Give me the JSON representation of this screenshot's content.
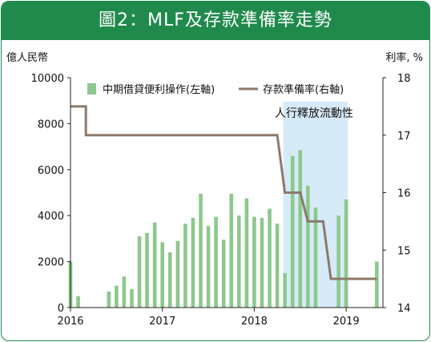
{
  "header": {
    "title": "圖2：MLF及存款準備率走勢"
  },
  "chart_data": {
    "type": "bar+line",
    "title": "圖2：MLF及存款準備率走勢",
    "left_axis": {
      "unit": "億人民幣",
      "ylim": [
        0,
        10000
      ],
      "ticks": [
        "0",
        "2000",
        "4000",
        "6000",
        "8000",
        "10000"
      ],
      "tick_values": [
        0,
        2000,
        4000,
        6000,
        8000,
        10000
      ]
    },
    "right_axis": {
      "unit": "利率, %",
      "ylim": [
        14,
        18
      ],
      "ticks": [
        "14",
        "15",
        "16",
        "17",
        "18"
      ],
      "tick_values": [
        14,
        15,
        16,
        17,
        18
      ]
    },
    "x_axis": {
      "ticks": [
        "2016",
        "2017",
        "2018",
        "2019"
      ],
      "tick_values": [
        2016,
        2017,
        2018,
        2019
      ],
      "xlim": [
        2016,
        2019.4
      ]
    },
    "legend": {
      "position": "top",
      "items": [
        "中期借貸便利操作(左軸)",
        "存款準備率(右軸)"
      ]
    },
    "annotation": {
      "text": "人行釋放流動性",
      "span": [
        2018.333,
        2019.0
      ]
    },
    "colors": {
      "bar": "#8cc88d",
      "line": "#8c7a6b",
      "shade": "#d6eaf7",
      "title_bg": "#1f8a4c"
    },
    "series": [
      {
        "name": "中期借貸便利操作(左軸)",
        "type": "bar",
        "axis": "left",
        "points": [
          {
            "x": 2016.0,
            "y": 2000
          },
          {
            "x": 2016.083,
            "y": 500
          },
          {
            "x": 2016.417,
            "y": 700
          },
          {
            "x": 2016.5,
            "y": 950
          },
          {
            "x": 2016.583,
            "y": 1350
          },
          {
            "x": 2016.667,
            "y": 800
          },
          {
            "x": 2016.75,
            "y": 3100
          },
          {
            "x": 2016.833,
            "y": 3250
          },
          {
            "x": 2016.917,
            "y": 3700
          },
          {
            "x": 2017.0,
            "y": 2850
          },
          {
            "x": 2017.083,
            "y": 2400
          },
          {
            "x": 2017.167,
            "y": 2900
          },
          {
            "x": 2017.25,
            "y": 3650
          },
          {
            "x": 2017.333,
            "y": 3900
          },
          {
            "x": 2017.417,
            "y": 4950
          },
          {
            "x": 2017.5,
            "y": 3550
          },
          {
            "x": 2017.583,
            "y": 3950
          },
          {
            "x": 2017.667,
            "y": 2950
          },
          {
            "x": 2017.75,
            "y": 4950
          },
          {
            "x": 2017.833,
            "y": 4000
          },
          {
            "x": 2017.917,
            "y": 4750
          },
          {
            "x": 2018.0,
            "y": 3950
          },
          {
            "x": 2018.083,
            "y": 3900
          },
          {
            "x": 2018.167,
            "y": 4300
          },
          {
            "x": 2018.25,
            "y": 3650
          },
          {
            "x": 2018.333,
            "y": 1500
          },
          {
            "x": 2018.417,
            "y": 6600
          },
          {
            "x": 2018.5,
            "y": 6850
          },
          {
            "x": 2018.583,
            "y": 5300
          },
          {
            "x": 2018.667,
            "y": 4350
          },
          {
            "x": 2018.917,
            "y": 4000
          },
          {
            "x": 2019.0,
            "y": 4700
          },
          {
            "x": 2019.333,
            "y": 2000
          }
        ]
      },
      {
        "name": "存款準備率(右軸)",
        "type": "step-line",
        "axis": "right",
        "points": [
          {
            "x": 2016.0,
            "y": 17.5
          },
          {
            "x": 2016.167,
            "y": 17.5
          },
          {
            "x": 2016.167,
            "y": 17.0
          },
          {
            "x": 2018.25,
            "y": 17.0
          },
          {
            "x": 2018.333,
            "y": 16.0
          },
          {
            "x": 2018.5,
            "y": 16.0
          },
          {
            "x": 2018.583,
            "y": 15.5
          },
          {
            "x": 2018.75,
            "y": 15.5
          },
          {
            "x": 2018.833,
            "y": 14.5
          },
          {
            "x": 2019.333,
            "y": 14.5
          }
        ]
      }
    ]
  }
}
